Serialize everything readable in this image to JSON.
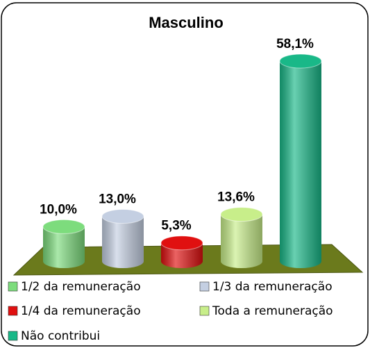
{
  "chart_data": {
    "type": "bar",
    "title": "Masculino",
    "series": [
      {
        "name": "1/2 da remuneração",
        "color": "#7ddc7d",
        "values": [
          10.0
        ],
        "value_labels": [
          "10,0%"
        ]
      },
      {
        "name": "1/3 da remuneração",
        "color": "#c4cfe2",
        "values": [
          13.0
        ],
        "value_labels": [
          "13,0%"
        ]
      },
      {
        "name": "1/4 da remuneração",
        "color": "#e01010",
        "values": [
          5.3
        ],
        "value_labels": [
          "5,3%"
        ]
      },
      {
        "name": "Toda a remuneração",
        "color": "#c8ee8a",
        "values": [
          13.6
        ],
        "value_labels": [
          "13,6%"
        ]
      },
      {
        "name": "Não contribui",
        "color": "#19b888",
        "values": [
          58.1
        ],
        "value_labels": [
          "58,1%"
        ]
      }
    ],
    "legend": "bottom"
  }
}
